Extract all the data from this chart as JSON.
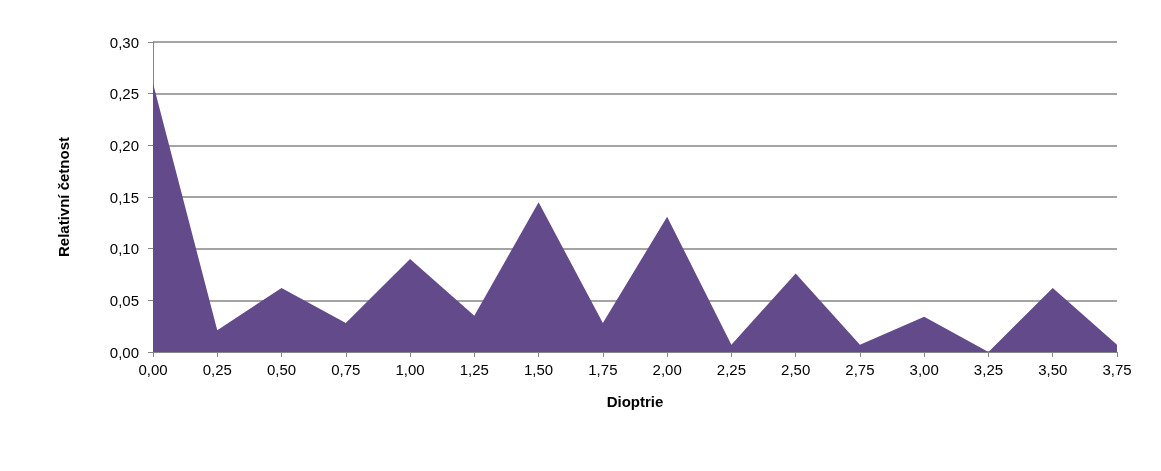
{
  "chart_data": {
    "type": "area",
    "xlabel": "Dioptrie",
    "ylabel": "Relativní četnost",
    "categories": [
      "0,00",
      "0,25",
      "0,50",
      "0,75",
      "1,00",
      "1,25",
      "1,50",
      "1,75",
      "2,00",
      "2,25",
      "2,50",
      "2,75",
      "3,00",
      "3,25",
      "3,50",
      "3,75"
    ],
    "series": [
      {
        "color": "#634a8a",
        "values": [
          0.26,
          0.021,
          0.062,
          0.028,
          0.09,
          0.035,
          0.145,
          0.028,
          0.131,
          0.007,
          0.076,
          0.007,
          0.034,
          0,
          0.062,
          0.007
        ]
      }
    ],
    "ylim": [
      0,
      0.3
    ],
    "yticks": [
      {
        "value": 0,
        "label": "0,00"
      },
      {
        "value": 0.05,
        "label": "0,05"
      },
      {
        "value": 0.1,
        "label": "0,10"
      },
      {
        "value": 0.15,
        "label": "0,15"
      },
      {
        "value": 0.2,
        "label": "0,20"
      },
      {
        "value": 0.25,
        "label": "0,25"
      },
      {
        "value": 0.3,
        "label": "0,30"
      }
    ],
    "grid": "y",
    "marker": "none"
  }
}
